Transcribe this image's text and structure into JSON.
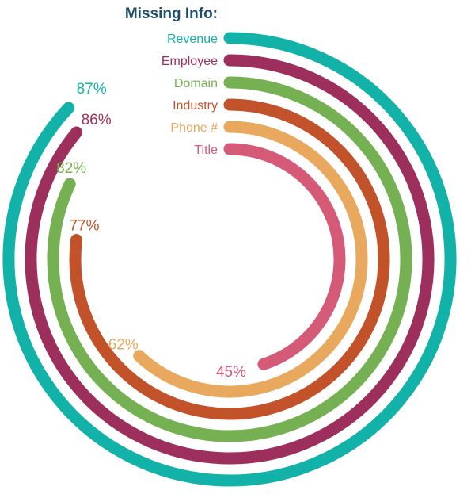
{
  "chart_data": {
    "type": "radial-bar",
    "title": "Missing Info:",
    "title_color": "#1d4e6b",
    "unit": "%",
    "max": 100,
    "grid": false,
    "categories": [
      "Revenue",
      "Employee",
      "Domain",
      "Industry",
      "Phone #",
      "Title"
    ],
    "values": [
      87,
      86,
      82,
      77,
      62,
      45
    ],
    "value_labels": [
      "87%",
      "86%",
      "82%",
      "77%",
      "62%",
      "45%"
    ],
    "colors": [
      "#12b2a9",
      "#9c2f5c",
      "#75b152",
      "#c2522a",
      "#e8a85e",
      "#d55a78"
    ]
  }
}
